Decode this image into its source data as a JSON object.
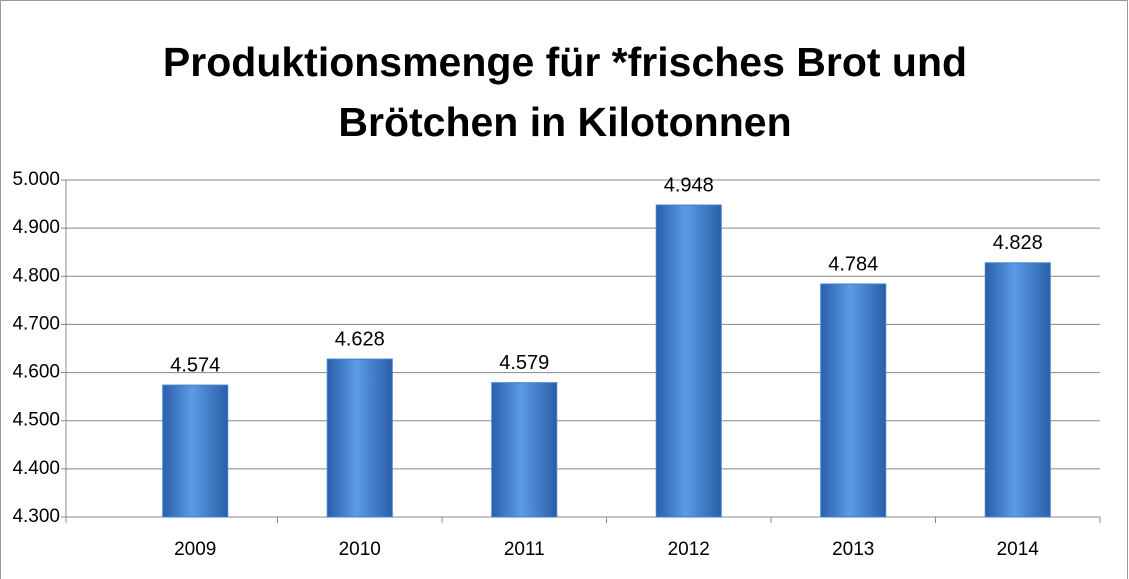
{
  "chart_data": {
    "type": "bar",
    "title": "Produktionsmenge für *frisches Brot und Brötchen in Kilotonnen",
    "categories": [
      "2009",
      "2010",
      "2011",
      "2012",
      "2013",
      "2014"
    ],
    "values": [
      4574,
      4628,
      4579,
      4948,
      4784,
      4828
    ],
    "value_labels": [
      "4.574",
      "4.628",
      "4.579",
      "4.948",
      "4.784",
      "4.828"
    ],
    "color": "#3f7fcf",
    "ylim": [
      4300,
      5000
    ],
    "yticks": [
      {
        "value": 4300,
        "label": "4.300"
      },
      {
        "value": 4400,
        "label": "4.400"
      },
      {
        "value": 4500,
        "label": "4.500"
      },
      {
        "value": 4600,
        "label": "4.600"
      },
      {
        "value": 4700,
        "label": "4.700"
      },
      {
        "value": 4800,
        "label": "4.800"
      },
      {
        "value": 4900,
        "label": "4.900"
      },
      {
        "value": 5000,
        "label": "5.000"
      }
    ],
    "grid": true
  }
}
